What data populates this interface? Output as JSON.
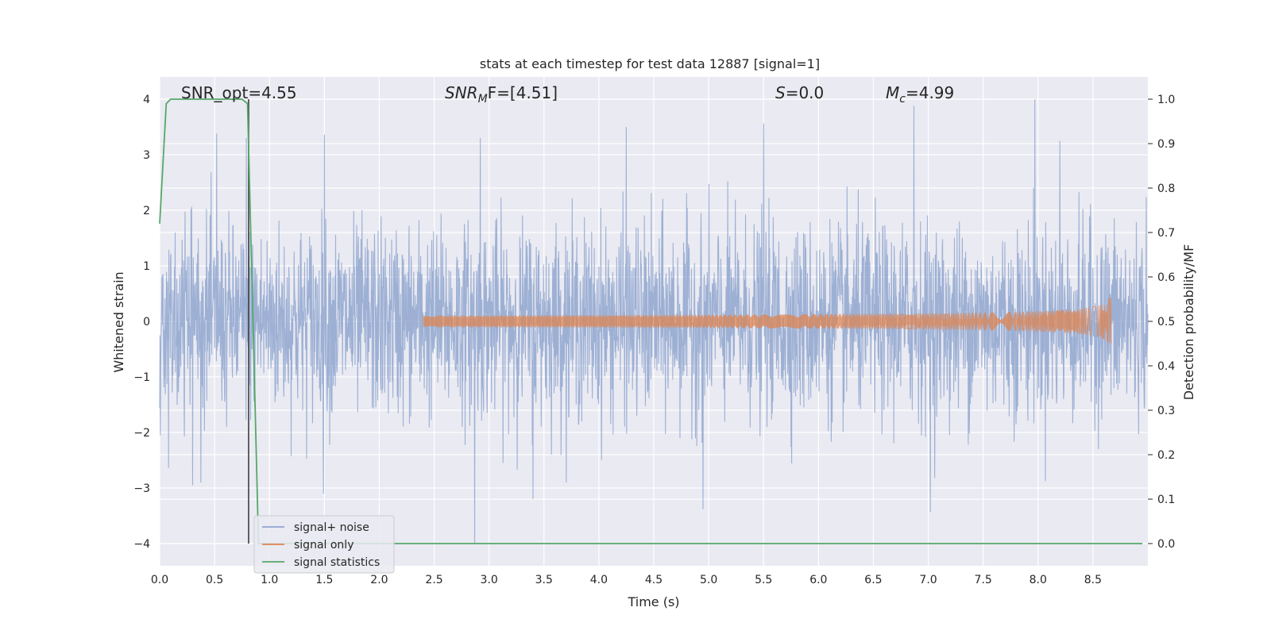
{
  "chart_data": {
    "type": "line",
    "title": "stats at each timestep for test data 12887 [signal=1]",
    "xlabel": "Time (s)",
    "ylabel": "Whitened strain",
    "ylabel_right": "Detection probability/MF",
    "xlim": [
      0.0,
      9.0
    ],
    "ylim": [
      -4.4,
      4.4
    ],
    "ylim_right": [
      -0.05,
      1.05
    ],
    "xticks": [
      0.0,
      0.5,
      1.0,
      1.5,
      2.0,
      2.5,
      3.0,
      3.5,
      4.0,
      4.5,
      5.0,
      5.5,
      6.0,
      6.5,
      7.0,
      7.5,
      8.0,
      8.5
    ],
    "xtick_labels": [
      "0.0",
      "0.5",
      "1.0",
      "1.5",
      "2.0",
      "2.5",
      "3.0",
      "3.5",
      "4.0",
      "4.5",
      "5.0",
      "5.5",
      "6.0",
      "6.5",
      "7.0",
      "7.5",
      "8.0",
      "8.5"
    ],
    "yticks": [
      -4,
      -3,
      -2,
      -1,
      0,
      1,
      2,
      3,
      4
    ],
    "ytick_labels": [
      "−4",
      "−3",
      "−2",
      "−1",
      "0",
      "1",
      "2",
      "3",
      "4"
    ],
    "yticks_right": [
      0.0,
      0.1,
      0.2,
      0.3,
      0.4,
      0.5,
      0.6,
      0.7,
      0.8,
      0.9,
      1.0
    ],
    "ytick_labels_right": [
      "0.0",
      "0.1",
      "0.2",
      "0.3",
      "0.4",
      "0.5",
      "0.6",
      "0.7",
      "0.8",
      "0.9",
      "1.0"
    ],
    "grid": true,
    "legend_position": "lower-left",
    "annotations": {
      "snr_opt": "SNR_opt=4.55",
      "snr_mf_base": "SNR",
      "snr_mf_sub": "M",
      "snr_mf_rest": "F=[4.51]",
      "s_base": "S",
      "s_rest": "=0.0",
      "mc_base": "M",
      "mc_sub": "c",
      "mc_rest": "=4.99"
    },
    "series": [
      {
        "name": "signal+ noise",
        "color": "#8fa6cf",
        "kind": "noise",
        "x_range": [
          0.0,
          9.0
        ],
        "sigma": 1.0,
        "peaks": [
          [
            0.52,
            3.38
          ],
          [
            0.79,
            3.3
          ],
          [
            1.5,
            3.36
          ],
          [
            2.92,
            3.3
          ],
          [
            4.25,
            3.5
          ],
          [
            5.5,
            3.56
          ],
          [
            6.87,
            3.88
          ],
          [
            7.97,
            4.0
          ],
          [
            8.2,
            3.25
          ],
          [
            2.87,
            -4.0
          ],
          [
            4.95,
            -3.38
          ],
          [
            7.02,
            -3.43
          ],
          [
            0.3,
            -2.95
          ],
          [
            1.49,
            -3.1
          ],
          [
            3.4,
            -3.2
          ]
        ]
      },
      {
        "name": "signal only",
        "color": "#dd8452",
        "kind": "chirp",
        "x_start": 2.4,
        "x_end": 8.67,
        "max_amplitude": 0.45
      },
      {
        "name": "signal statistics",
        "color": "#55a868",
        "axis": "right",
        "x": [
          0.0,
          0.06,
          0.1,
          0.2,
          0.3,
          0.4,
          0.5,
          0.6,
          0.7,
          0.75,
          0.8,
          0.85,
          0.9,
          1.0,
          1.5,
          2.0,
          3.0,
          4.0,
          5.0,
          6.0,
          7.0,
          8.0,
          8.95
        ],
        "y": [
          0.72,
          0.99,
          1.0,
          1.0,
          1.0,
          1.0,
          1.0,
          1.0,
          1.0,
          1.0,
          0.99,
          0.5,
          0.0,
          0.0,
          0.0,
          0.0,
          0.0,
          0.0,
          0.0,
          0.0,
          0.0,
          0.0,
          0.0
        ]
      }
    ],
    "vertical_line": {
      "x": 0.81,
      "color": "#3f3f3f"
    }
  }
}
